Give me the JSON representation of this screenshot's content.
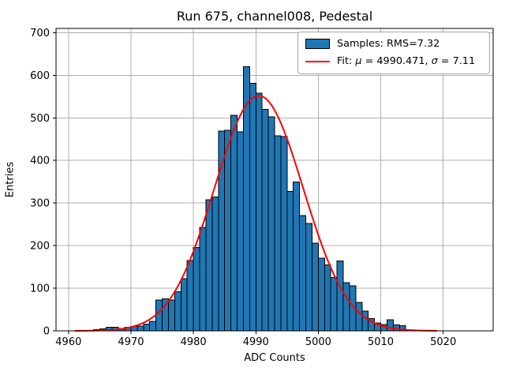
{
  "figure": {
    "title": "Run 675, channel008, Pedestal",
    "xlabel": "ADC Counts",
    "ylabel": "Entries"
  },
  "legend": {
    "samples_label": "Samples: RMS=7.32",
    "fit_label": "Fit: μ = 4990.471, σ = 7.11",
    "swatch_fill": "#1f77b4",
    "swatch_edge": "#000000",
    "fit_line_color": "#ff0000"
  },
  "chart_data": {
    "type": "bar",
    "subtype": "histogram_with_gaussian_fit",
    "title": "Run 675, channel008, Pedestal",
    "xlabel": "ADC Counts",
    "ylabel": "Entries",
    "grid": true,
    "legend_position": "upper right",
    "xlim": [
      4958,
      5028
    ],
    "ylim": [
      0,
      710
    ],
    "x_ticks": [
      4960,
      4970,
      4980,
      4990,
      5000,
      5010,
      5020
    ],
    "y_ticks": [
      0,
      100,
      200,
      300,
      400,
      500,
      600,
      700
    ],
    "histogram": {
      "bin_start": 4964,
      "bin_width": 1,
      "counts": [
        3,
        5,
        8,
        8,
        6,
        8,
        10,
        11,
        16,
        22,
        72,
        75,
        72,
        92,
        122,
        165,
        196,
        243,
        308,
        314,
        469,
        471,
        506,
        467,
        620,
        581,
        558,
        520,
        502,
        458,
        456,
        327,
        349,
        271,
        252,
        206,
        171,
        155,
        125,
        164,
        113,
        106,
        67,
        46,
        29,
        19,
        15,
        26,
        14,
        12
      ],
      "fill_color": "#1f77b4",
      "edge_color": "#000000"
    },
    "fit": {
      "shape": "gaussian",
      "mu": 4990.471,
      "sigma": 7.11,
      "amplitude": 552,
      "x_min": 4961,
      "x_max": 5019,
      "color": "#ff0000"
    },
    "colors": {
      "grid": "#b0b0b0",
      "spine": "#000000",
      "background": "#ffffff"
    }
  }
}
